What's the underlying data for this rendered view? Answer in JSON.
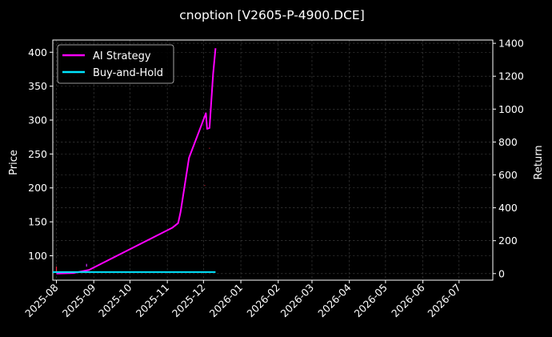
{
  "chart_data": {
    "type": "line",
    "title": "cnoption [V2605-P-4900.DCE]",
    "ylabel_left": "Price",
    "ylabel_right": "Return",
    "x_ticks": [
      "2025-08",
      "2025-09",
      "2025-10",
      "2025-11",
      "2025-12",
      "2026-01",
      "2026-02",
      "2026-03",
      "2026-04",
      "2026-05",
      "2026-06",
      "2026-07"
    ],
    "xlim": [
      "2025-07-29",
      "2026-07-29"
    ],
    "ylim_left": [
      64,
      418
    ],
    "yticks_left": [
      100,
      150,
      200,
      250,
      300,
      350,
      400
    ],
    "ylim_right": [
      -40,
      1420
    ],
    "yticks_right": [
      0,
      200,
      400,
      600,
      800,
      1000,
      1200,
      1400
    ],
    "grid": true,
    "legend_position": "top-left",
    "colors": {
      "background": "#000000",
      "grid": "#444444",
      "ai": "#ff00ff",
      "bh": "#00e5ff",
      "marks": "#ff1f3d",
      "marks_alt": "#cc33ff"
    },
    "series": [
      {
        "name": "AI Strategy",
        "axis": "right",
        "points": [
          [
            "2025-08-01",
            0
          ],
          [
            "2025-08-15",
            3
          ],
          [
            "2025-08-28",
            22
          ],
          [
            "2025-11-05",
            278
          ],
          [
            "2025-11-10",
            307
          ],
          [
            "2025-11-12",
            375
          ],
          [
            "2025-11-19",
            704
          ],
          [
            "2025-12-02",
            955
          ],
          [
            "2025-12-03",
            975
          ],
          [
            "2025-12-04",
            880
          ],
          [
            "2025-12-06",
            885
          ],
          [
            "2025-12-09",
            1215
          ],
          [
            "2025-12-11",
            1370
          ]
        ]
      },
      {
        "name": "Buy-and-Hold",
        "axis": "right",
        "points": [
          [
            "2025-07-29",
            9
          ],
          [
            "2025-12-11",
            9
          ]
        ]
      }
    ],
    "price_marks": [
      {
        "date": "2025-08-01",
        "low": 76,
        "high": 84,
        "color": "marks"
      },
      {
        "date": "2025-08-26",
        "low": 84,
        "high": 88,
        "color": "marks_alt"
      },
      {
        "date": "2025-12-02",
        "low": 203,
        "high": 204,
        "color": "marks"
      },
      {
        "date": "2025-12-06",
        "low": 258,
        "high": 259,
        "color": "marks"
      }
    ]
  }
}
